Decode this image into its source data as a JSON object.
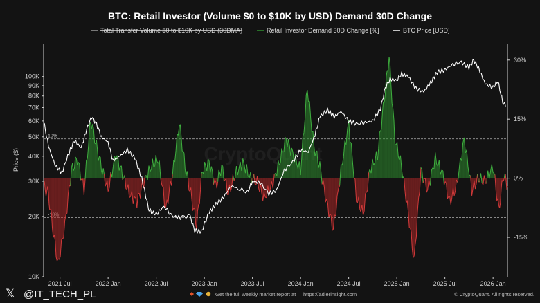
{
  "chart_data": {
    "type": "line",
    "title": "BTC: Retail Investor (Volume $0 to $10K by USD) Demand 30D Change",
    "legend": [
      {
        "label": "Total Transfer Volume $0 to $10K by USD (30DMA)",
        "color": "#9a9a9a",
        "struck": true
      },
      {
        "label": "Retail Investor Demand 30D Change [%]",
        "color": "#2f8f2f"
      },
      {
        "label": "BTC Price [USD]",
        "color": "#ffffff"
      }
    ],
    "ylabel": "Price ($)",
    "x_ticks": [
      "2021 Jul",
      "2022 Jan",
      "2022 Jul",
      "2023 Jan",
      "2023 Jul",
      "2024 Jan",
      "2024 Jul",
      "2025 Jan",
      "2025 Jul",
      "2026 Jan"
    ],
    "x_range": [
      2021.33,
      2026.15
    ],
    "y_left_ticks": [
      {
        "label": "100K",
        "value": 100000
      },
      {
        "label": "90K",
        "value": 90000
      },
      {
        "label": "80K",
        "value": 80000
      },
      {
        "label": "70K",
        "value": 70000
      },
      {
        "label": "60K",
        "value": 60000
      },
      {
        "label": "50K",
        "value": 50000
      },
      {
        "label": "40K",
        "value": 40000
      },
      {
        "label": "30K",
        "value": 30000
      },
      {
        "label": "20K",
        "value": 20000
      },
      {
        "label": "10K",
        "value": 10000
      }
    ],
    "y_left_log": true,
    "y_left_range": [
      10000,
      145000
    ],
    "y_right_ticks": [
      {
        "label": "30%",
        "value": 30
      },
      {
        "label": "15%",
        "value": 15
      },
      {
        "label": "0%",
        "value": 0
      },
      {
        "label": "-15%",
        "value": -15
      }
    ],
    "y_right_range": [
      -25,
      34
    ],
    "reference_lines": [
      {
        "label": "10%",
        "value": 10
      },
      {
        "label": "",
        "value": 0
      },
      {
        "label": "-10%",
        "value": -10
      }
    ],
    "series": [
      {
        "name": "BTC Price [USD]",
        "axis": "left",
        "color": "#ffffff",
        "x": [
          2021.33,
          2021.38,
          2021.45,
          2021.52,
          2021.58,
          2021.65,
          2021.72,
          2021.78,
          2021.83,
          2021.88,
          2021.93,
          2022.0,
          2022.05,
          2022.12,
          2022.2,
          2022.28,
          2022.35,
          2022.42,
          2022.45,
          2022.5,
          2022.58,
          2022.67,
          2022.75,
          2022.85,
          2022.9,
          2022.97,
          2023.05,
          2023.12,
          2023.2,
          2023.28,
          2023.35,
          2023.45,
          2023.5,
          2023.58,
          2023.67,
          2023.75,
          2023.83,
          2023.92,
          2024.0,
          2024.08,
          2024.15,
          2024.2,
          2024.28,
          2024.35,
          2024.42,
          2024.5,
          2024.58,
          2024.67,
          2024.75,
          2024.83,
          2024.88,
          2024.93,
          2025.0,
          2025.05,
          2025.12,
          2025.2,
          2025.28,
          2025.35,
          2025.42,
          2025.5,
          2025.58,
          2025.67,
          2025.75,
          2025.8,
          2025.85,
          2025.92,
          2026.0,
          2026.05,
          2026.1,
          2026.13
        ],
        "y": [
          60000,
          45000,
          36000,
          33000,
          40000,
          48000,
          44000,
          55000,
          63000,
          58000,
          50000,
          47000,
          38000,
          40000,
          43000,
          39000,
          31000,
          22000,
          21000,
          20500,
          22500,
          20000,
          19800,
          20200,
          17000,
          16800,
          21000,
          23000,
          25000,
          28500,
          27500,
          26500,
          30000,
          29500,
          26000,
          27000,
          34000,
          37500,
          43000,
          42000,
          51000,
          63000,
          68000,
          63000,
          67000,
          60000,
          58000,
          59000,
          60000,
          69000,
          88000,
          97000,
          96000,
          103000,
          100000,
          87000,
          84000,
          93000,
          105000,
          108000,
          115000,
          118000,
          111000,
          121000,
          110000,
          92000,
          88000,
          95000,
          75000,
          71000
        ]
      },
      {
        "name": "Retail Investor Demand 30D Change [%]",
        "axis": "right",
        "color_positive": "#2f8f2f",
        "color_negative": "#b02828",
        "x": [
          2021.33,
          2021.38,
          2021.42,
          2021.48,
          2021.55,
          2021.62,
          2021.68,
          2021.75,
          2021.82,
          2021.88,
          2021.94,
          2022.0,
          2022.08,
          2022.15,
          2022.22,
          2022.3,
          2022.37,
          2022.45,
          2022.52,
          2022.6,
          2022.67,
          2022.74,
          2022.8,
          2022.86,
          2022.92,
          2022.98,
          2023.05,
          2023.12,
          2023.18,
          2023.25,
          2023.32,
          2023.4,
          2023.48,
          2023.55,
          2023.62,
          2023.7,
          2023.78,
          2023.85,
          2023.92,
          2024.0,
          2024.07,
          2024.14,
          2024.2,
          2024.27,
          2024.34,
          2024.42,
          2024.5,
          2024.58,
          2024.65,
          2024.72,
          2024.8,
          2024.86,
          2024.92,
          2024.98,
          2025.05,
          2025.12,
          2025.18,
          2025.25,
          2025.32,
          2025.4,
          2025.48,
          2025.55,
          2025.62,
          2025.7,
          2025.78,
          2025.85,
          2025.92,
          2026.0,
          2026.06,
          2026.11,
          2026.15
        ],
        "y": [
          -2,
          -4,
          -12,
          -22,
          -12,
          2,
          5,
          -3,
          15,
          8,
          2,
          -3,
          6,
          1,
          -4,
          -6,
          -1,
          3,
          5,
          -8,
          1,
          14,
          3,
          -4,
          -12,
          2,
          4,
          -2,
          3,
          -4,
          1,
          4,
          0,
          -1,
          -5,
          -2,
          4,
          10,
          6,
          2,
          23,
          8,
          3,
          -6,
          -13,
          2,
          14,
          -5,
          -9,
          2,
          6,
          18,
          31,
          10,
          3,
          -9,
          -21,
          2,
          -3,
          5,
          1,
          -6,
          -2,
          10,
          -3,
          0,
          -1,
          3,
          -8,
          1,
          -2
        ]
      }
    ],
    "watermark": "CryptoQuant",
    "footer": {
      "handle": "@IT_TECH_PL",
      "promo_text": "Get the full weekly market report at",
      "link": "https://adlerinsight.com",
      "credit": "© CryptoQuant. All rights reserved."
    }
  }
}
